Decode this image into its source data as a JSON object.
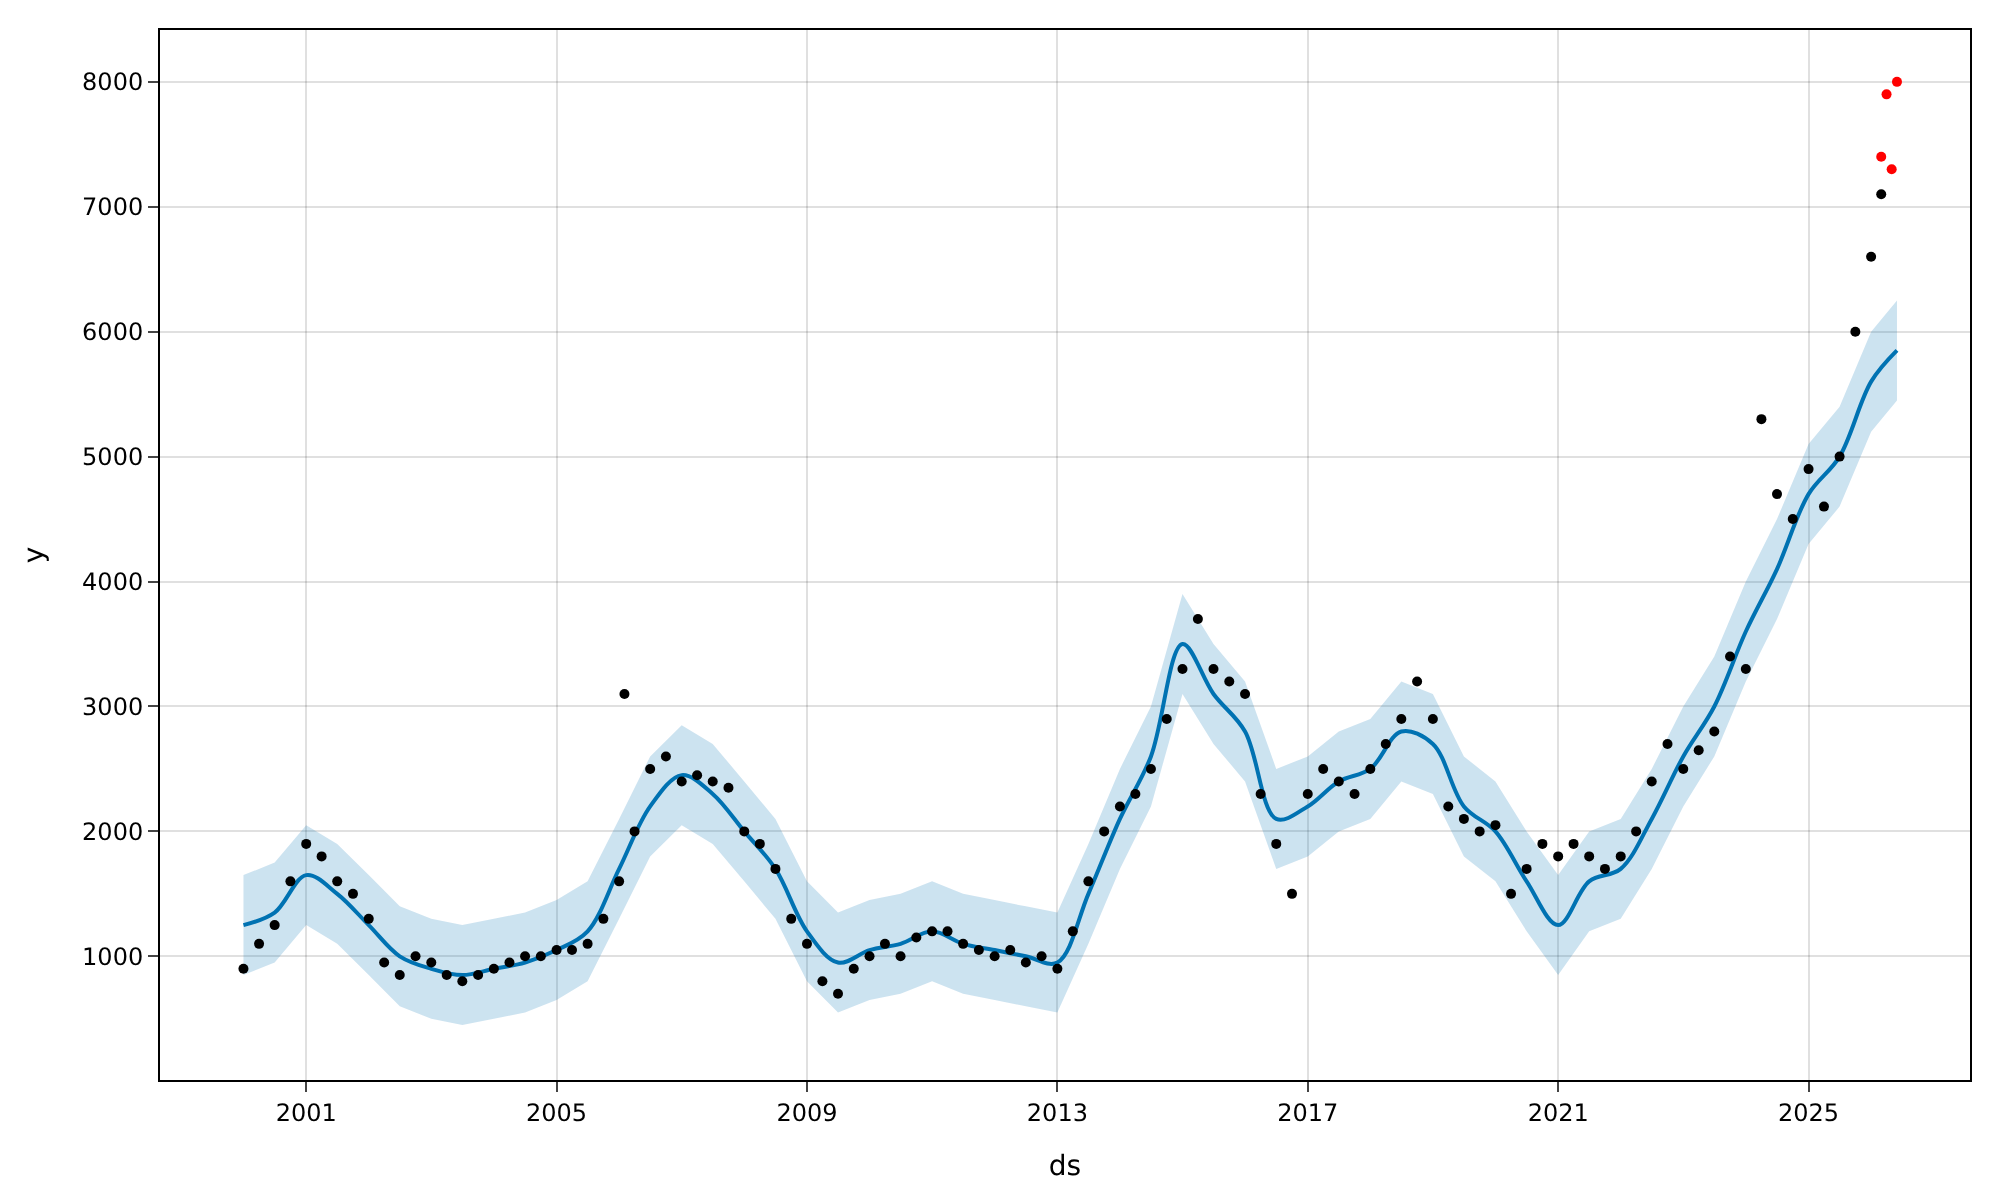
{
  "chart_data": {
    "type": "scatter",
    "xlabel": "ds",
    "ylabel": "y",
    "grid": true,
    "marker": "circle",
    "xlim": [
      "1998-09",
      "2027-08"
    ],
    "ylim": [
      10,
      8415
    ],
    "xticks": [
      {
        "value": "2001-01",
        "label": "2001"
      },
      {
        "value": "2005-01",
        "label": "2005"
      },
      {
        "value": "2009-01",
        "label": "2009"
      },
      {
        "value": "2013-01",
        "label": "2013"
      },
      {
        "value": "2017-01",
        "label": "2017"
      },
      {
        "value": "2021-01",
        "label": "2021"
      },
      {
        "value": "2025-01",
        "label": "2025"
      }
    ],
    "yticks": [
      1000,
      2000,
      3000,
      4000,
      5000,
      6000,
      7000,
      8000
    ],
    "series": [
      {
        "type": "line",
        "marker": "none",
        "color": "#0072b2",
        "x": [
          "2000-01",
          "2000-07",
          "2001-01",
          "2001-07",
          "2002-01",
          "2002-07",
          "2003-01",
          "2003-07",
          "2004-01",
          "2004-07",
          "2005-01",
          "2005-07",
          "2006-01",
          "2006-07",
          "2007-01",
          "2007-07",
          "2008-01",
          "2008-07",
          "2009-01",
          "2009-07",
          "2010-01",
          "2010-07",
          "2011-01",
          "2011-07",
          "2012-01",
          "2012-07",
          "2013-01",
          "2013-07",
          "2014-01",
          "2014-07",
          "2015-01",
          "2015-07",
          "2016-01",
          "2016-07",
          "2017-01",
          "2017-07",
          "2018-01",
          "2018-07",
          "2019-01",
          "2019-07",
          "2020-01",
          "2020-07",
          "2021-01",
          "2021-07",
          "2022-01",
          "2022-07",
          "2023-01",
          "2023-07",
          "2024-01",
          "2024-07",
          "2025-01",
          "2025-07",
          "2026-01",
          "2026-06"
        ],
        "values": [
          1250,
          1350,
          1650,
          1500,
          1250,
          1000,
          900,
          850,
          900,
          950,
          1050,
          1200,
          1700,
          2200,
          2450,
          2300,
          2000,
          1700,
          1200,
          950,
          1050,
          1100,
          1200,
          1100,
          1050,
          1000,
          950,
          1500,
          2100,
          2600,
          3500,
          3100,
          2800,
          2100,
          2200,
          2400,
          2500,
          2800,
          2700,
          2200,
          2000,
          1600,
          1250,
          1600,
          1700,
          2100,
          2600,
          3000,
          3600,
          4100,
          4700,
          5000,
          5600,
          5850
        ],
        "lower": [
          850,
          950,
          1250,
          1100,
          850,
          600,
          500,
          450,
          500,
          550,
          650,
          800,
          1300,
          1800,
          2050,
          1900,
          1600,
          1300,
          800,
          550,
          650,
          700,
          800,
          700,
          650,
          600,
          550,
          1100,
          1700,
          2200,
          3100,
          2700,
          2400,
          1700,
          1800,
          2000,
          2100,
          2400,
          2300,
          1800,
          1600,
          1200,
          850,
          1200,
          1300,
          1700,
          2200,
          2600,
          3200,
          3700,
          4300,
          4600,
          5200,
          5450
        ],
        "upper": [
          1650,
          1750,
          2050,
          1900,
          1650,
          1400,
          1300,
          1250,
          1300,
          1350,
          1450,
          1600,
          2100,
          2600,
          2850,
          2700,
          2400,
          2100,
          1600,
          1350,
          1450,
          1500,
          1600,
          1500,
          1450,
          1400,
          1350,
          1900,
          2500,
          3000,
          3900,
          3500,
          3200,
          2500,
          2600,
          2800,
          2900,
          3200,
          3100,
          2600,
          2400,
          2000,
          1650,
          2000,
          2100,
          2500,
          3000,
          3400,
          4000,
          4500,
          5100,
          5400,
          6000,
          6250
        ]
      },
      {
        "color": "#000000",
        "x": [
          "2000-01",
          "2000-04",
          "2000-07",
          "2000-10",
          "2001-01",
          "2001-04",
          "2001-07",
          "2001-10",
          "2002-01",
          "2002-04",
          "2002-07",
          "2002-10",
          "2003-01",
          "2003-04",
          "2003-07",
          "2003-10",
          "2004-01",
          "2004-04",
          "2004-07",
          "2004-10",
          "2005-01",
          "2005-04",
          "2005-07",
          "2005-10",
          "2006-01",
          "2006-02",
          "2006-04",
          "2006-07",
          "2006-10",
          "2007-01",
          "2007-04",
          "2007-07",
          "2007-10",
          "2008-01",
          "2008-04",
          "2008-07",
          "2008-10",
          "2009-01",
          "2009-04",
          "2009-07",
          "2009-10",
          "2010-01",
          "2010-04",
          "2010-07",
          "2010-10",
          "2011-01",
          "2011-04",
          "2011-07",
          "2011-10",
          "2012-01",
          "2012-04",
          "2012-07",
          "2012-10",
          "2013-01",
          "2013-04",
          "2013-07",
          "2013-10",
          "2014-01",
          "2014-04",
          "2014-07",
          "2014-10",
          "2015-01",
          "2015-04",
          "2015-07",
          "2015-10",
          "2016-01",
          "2016-04",
          "2016-07",
          "2016-10",
          "2017-01",
          "2017-04",
          "2017-07",
          "2017-10",
          "2018-01",
          "2018-04",
          "2018-07",
          "2018-10",
          "2019-01",
          "2019-04",
          "2019-07",
          "2019-10",
          "2020-01",
          "2020-04",
          "2020-07",
          "2020-10",
          "2021-01",
          "2021-04",
          "2021-07",
          "2021-10",
          "2022-01",
          "2022-04",
          "2022-07",
          "2022-10",
          "2023-01",
          "2023-04",
          "2023-07",
          "2023-10",
          "2024-01",
          "2024-04",
          "2024-07",
          "2024-10",
          "2025-01",
          "2025-04",
          "2025-07",
          "2025-10",
          "2026-01",
          "2026-03"
        ],
        "values": [
          900,
          1100,
          1250,
          1600,
          1900,
          1800,
          1600,
          1500,
          1300,
          950,
          850,
          1000,
          950,
          850,
          800,
          850,
          900,
          950,
          1000,
          1000,
          1050,
          1050,
          1100,
          1300,
          1600,
          3100,
          2000,
          2500,
          2600,
          2400,
          2450,
          2400,
          2350,
          2000,
          1900,
          1700,
          1300,
          1100,
          800,
          700,
          900,
          1000,
          1100,
          1000,
          1150,
          1200,
          1200,
          1100,
          1050,
          1000,
          1050,
          950,
          1000,
          900,
          1200,
          1600,
          2000,
          2200,
          2300,
          2500,
          2900,
          3300,
          3700,
          3300,
          3200,
          3100,
          2300,
          1900,
          1500,
          2300,
          2500,
          2400,
          2300,
          2500,
          2700,
          2900,
          3200,
          2900,
          2200,
          2100,
          2000,
          2050,
          1500,
          1700,
          1900,
          1800,
          1900,
          1800,
          1700,
          1800,
          2000,
          2400,
          2700,
          2500,
          2650,
          2800,
          3400,
          3300,
          5300,
          4700,
          4500,
          4900,
          4600,
          5000,
          6000,
          6600,
          7100
        ]
      },
      {
        "color": "#ff0000",
        "x": [
          "2026-03",
          "2026-04",
          "2026-05",
          "2026-06"
        ],
        "values": [
          7400,
          7900,
          7300,
          8000
        ]
      }
    ]
  }
}
